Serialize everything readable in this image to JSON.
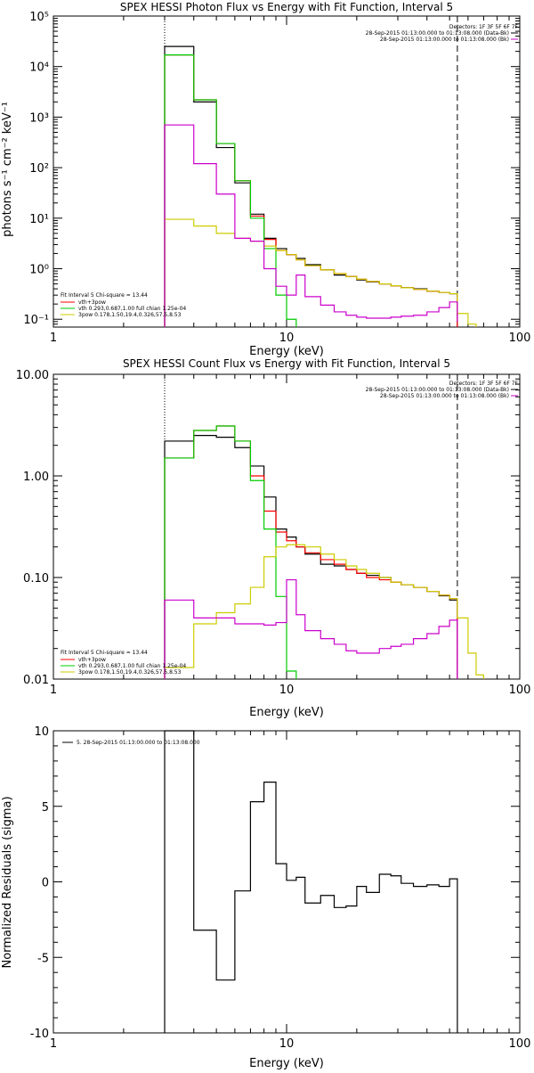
{
  "chart_data": [
    {
      "type": "line",
      "title": "SPEX HESSI Photon Flux vs Energy with Fit Function, Interval 5",
      "xlabel": "Energy (keV)",
      "ylabel": "photons s⁻¹ cm⁻² keV⁻¹",
      "xscale": "log",
      "yscale": "log",
      "xlim": [
        1,
        100
      ],
      "ylim": [
        0.07,
        100000
      ],
      "xticks": [
        {
          "v": 1,
          "label": "1"
        },
        {
          "v": 10,
          "label": "10"
        },
        {
          "v": 100,
          "label": "100"
        }
      ],
      "yticks": [
        {
          "v": 0.1,
          "label": "10⁻¹"
        },
        {
          "v": 1,
          "label": "10⁰"
        },
        {
          "v": 10,
          "label": "10¹"
        },
        {
          "v": 100,
          "label": "10²"
        },
        {
          "v": 1000,
          "label": "10³"
        },
        {
          "v": 10000,
          "label": "10⁴"
        },
        {
          "v": 100000,
          "label": "10⁵"
        }
      ],
      "vlines": [
        {
          "x": 3.0,
          "style": "dotted"
        },
        {
          "x": 54.0,
          "style": "dashed"
        }
      ],
      "header_lines": [
        {
          "text": "Detectors: 1F 3F 5F 6F 7F",
          "color": "#000000"
        },
        {
          "text": "28-Sep-2015 01:13:00.000 to 01:13:08.000 (Data-Bk)",
          "color": "#000000"
        },
        {
          "text": "28-Sep-2015 01:13:00.000 to 01:13:08.000 (Bk)",
          "color": "#cc00cc"
        }
      ],
      "legend_title": "Fit Interval 5   Chi-square = 13.44",
      "legend": [
        {
          "text": "vth+3pow",
          "color": "#ff0000"
        },
        {
          "text": "vth 0.293,0.687,1.00  full chian 1.25e-04",
          "color": "#00cc00"
        },
        {
          "text": "3pow 0.178,1.50,19.4,0.326,57.5,8.53",
          "color": "#cccc00"
        }
      ],
      "series": [
        {
          "key": "data",
          "color": "#000000",
          "edges": [
            3,
            4,
            5,
            6,
            7,
            8,
            9,
            10,
            11,
            12,
            14,
            16,
            18,
            20,
            22,
            25,
            28,
            31,
            35,
            40,
            45,
            50,
            54
          ],
          "values": [
            25000,
            2000,
            250,
            50,
            12,
            4,
            2.5,
            1.9,
            1.6,
            1.2,
            0.95,
            0.75,
            0.7,
            0.6,
            0.55,
            0.5,
            0.46,
            0.42,
            0.4,
            0.36,
            0.34,
            0.32
          ]
        },
        {
          "key": "total",
          "color": "#ff0000",
          "edges": [
            3,
            4,
            5,
            6,
            7,
            8,
            9,
            10,
            11,
            12,
            14,
            16,
            18,
            20,
            22,
            25,
            28,
            31,
            35,
            40,
            45,
            50,
            54
          ],
          "values": [
            17000,
            2200,
            300,
            55,
            11,
            3.8,
            2.3,
            1.9,
            1.5,
            1.15,
            0.95,
            0.8,
            0.7,
            0.62,
            0.56,
            0.5,
            0.46,
            0.42,
            0.39,
            0.36,
            0.34,
            0.32
          ]
        },
        {
          "key": "vth",
          "color": "#00cc00",
          "edges": [
            3,
            4,
            5,
            6,
            7,
            8,
            9,
            10,
            11
          ],
          "values": [
            17000,
            2200,
            300,
            55,
            10,
            2.5,
            0.3,
            0.1
          ]
        },
        {
          "key": "pow",
          "color": "#cccc00",
          "edges": [
            3,
            4,
            5,
            6,
            7,
            8,
            9,
            10,
            11,
            12,
            14,
            16,
            18,
            20,
            22,
            25,
            28,
            31,
            35,
            40,
            45,
            50,
            54,
            60,
            65
          ],
          "values": [
            9.5,
            7,
            5,
            4,
            3.5,
            2.8,
            2.3,
            1.9,
            1.5,
            1.15,
            0.95,
            0.8,
            0.7,
            0.62,
            0.56,
            0.5,
            0.46,
            0.42,
            0.39,
            0.36,
            0.34,
            0.32,
            0.13,
            0.08
          ]
        },
        {
          "key": "background",
          "color": "#cc00cc",
          "edges": [
            3,
            4,
            5,
            6,
            7,
            8,
            9,
            10,
            11,
            12,
            14,
            16,
            18,
            20,
            22,
            25,
            28,
            31,
            35,
            40,
            45,
            50,
            54
          ],
          "values": [
            700,
            120,
            30,
            4,
            3.5,
            1.0,
            0.45,
            0.3,
            0.75,
            0.28,
            0.19,
            0.14,
            0.12,
            0.11,
            0.105,
            0.105,
            0.11,
            0.115,
            0.12,
            0.14,
            0.17,
            0.22,
            0.09
          ]
        }
      ]
    },
    {
      "type": "line",
      "title": "SPEX HESSI Count Flux vs Energy with Fit Function, Interval 5",
      "xlabel": "Energy (keV)",
      "ylabel": "",
      "xscale": "log",
      "yscale": "log",
      "xlim": [
        1,
        100
      ],
      "ylim": [
        0.01,
        10
      ],
      "xticks": [
        {
          "v": 1,
          "label": "1"
        },
        {
          "v": 10,
          "label": "10"
        },
        {
          "v": 100,
          "label": "100"
        }
      ],
      "yticks": [
        {
          "v": 0.01,
          "label": "0.01"
        },
        {
          "v": 0.1,
          "label": "0.10"
        },
        {
          "v": 1,
          "label": "1.00"
        },
        {
          "v": 10,
          "label": "10.00"
        }
      ],
      "vlines": [
        {
          "x": 3.0,
          "style": "dotted"
        },
        {
          "x": 54.0,
          "style": "dashed"
        }
      ],
      "header_lines": [
        {
          "text": "Detectors: 1F 3F 5F 6F 7F",
          "color": "#000000"
        },
        {
          "text": "28-Sep-2015 01:13:00.000 to 01:13:08.000 (Data-Bk)",
          "color": "#000000"
        },
        {
          "text": "28-Sep-2015 01:13:00.000 to 01:13:08.000 (Bk)",
          "color": "#cc00cc"
        }
      ],
      "legend_title": "Fit Interval 5   Chi-square = 13.44",
      "legend": [
        {
          "text": "vth+3pow",
          "color": "#ff0000"
        },
        {
          "text": "vth 0.293,0.687,1.00  full chian 1.25e-04",
          "color": "#00cc00"
        },
        {
          "text": "3pow 0.178,1.50,19.4,0.326,57.5,8.53",
          "color": "#cccc00"
        }
      ],
      "series": [
        {
          "key": "data",
          "color": "#000000",
          "edges": [
            3,
            4,
            5,
            6,
            7,
            8,
            9,
            10,
            11,
            12,
            14,
            16,
            18,
            20,
            22,
            25,
            28,
            31,
            35,
            40,
            45,
            50,
            54
          ],
          "values": [
            2.2,
            2.5,
            2.4,
            1.9,
            1.25,
            0.62,
            0.3,
            0.25,
            0.2,
            0.17,
            0.135,
            0.13,
            0.12,
            0.11,
            0.105,
            0.1,
            0.09,
            0.085,
            0.08,
            0.073,
            0.066,
            0.06
          ]
        },
        {
          "key": "total",
          "color": "#ff0000",
          "edges": [
            3,
            4,
            5,
            6,
            7,
            8,
            9,
            10,
            11,
            12,
            14,
            16,
            18,
            20,
            22,
            25,
            28,
            31,
            35,
            40,
            45,
            50,
            54
          ],
          "values": [
            1.5,
            2.8,
            3.1,
            2.2,
            1.0,
            0.45,
            0.28,
            0.23,
            0.2,
            0.175,
            0.15,
            0.135,
            0.12,
            0.11,
            0.1,
            0.095,
            0.09,
            0.085,
            0.08,
            0.073,
            0.067,
            0.062
          ]
        },
        {
          "key": "vth",
          "color": "#00cc00",
          "edges": [
            3,
            4,
            5,
            6,
            7,
            8,
            9,
            10,
            11
          ],
          "values": [
            1.5,
            2.8,
            3.1,
            2.2,
            0.9,
            0.3,
            0.065,
            0.012
          ]
        },
        {
          "key": "pow",
          "color": "#cccc00",
          "edges": [
            3,
            4,
            5,
            6,
            7,
            8,
            9,
            10,
            11,
            12,
            14,
            16,
            18,
            20,
            22,
            25,
            28,
            31,
            35,
            40,
            45,
            50,
            54,
            60,
            65,
            70
          ],
          "values": [
            0.013,
            0.035,
            0.045,
            0.055,
            0.08,
            0.16,
            0.2,
            0.21,
            0.21,
            0.2,
            0.17,
            0.15,
            0.13,
            0.12,
            0.11,
            0.1,
            0.09,
            0.085,
            0.08,
            0.073,
            0.067,
            0.062,
            0.04,
            0.018,
            0.011
          ]
        },
        {
          "key": "background",
          "color": "#cc00cc",
          "edges": [
            3,
            4,
            5,
            6,
            7,
            8,
            9,
            10,
            11,
            12,
            14,
            16,
            18,
            20,
            22,
            25,
            28,
            31,
            35,
            40,
            45,
            50,
            54
          ],
          "values": [
            0.06,
            0.04,
            0.04,
            0.035,
            0.035,
            0.034,
            0.036,
            0.095,
            0.043,
            0.03,
            0.025,
            0.022,
            0.019,
            0.018,
            0.018,
            0.02,
            0.021,
            0.022,
            0.025,
            0.028,
            0.033,
            0.038,
            0.009
          ]
        }
      ]
    },
    {
      "type": "line",
      "title": "",
      "xlabel": "Energy (keV)",
      "ylabel": "Normalized Residuals (sigma)",
      "xscale": "log",
      "yscale": "linear",
      "xlim": [
        1,
        100
      ],
      "ylim": [
        -10,
        10
      ],
      "xticks": [
        {
          "v": 1,
          "label": "1"
        },
        {
          "v": 10,
          "label": "10"
        },
        {
          "v": 100,
          "label": "100"
        }
      ],
      "yticks": [
        {
          "v": -10,
          "label": "-10"
        },
        {
          "v": -5,
          "label": "-5"
        },
        {
          "v": 0,
          "label": "0"
        },
        {
          "v": 5,
          "label": "5"
        },
        {
          "v": 10,
          "label": "10"
        }
      ],
      "legend": [
        {
          "text": "5. 28-Sep-2015 01:13:00.000 to 01:13:08.000",
          "color": "#000000"
        }
      ],
      "series": [
        {
          "key": "residuals",
          "color": "#000000",
          "edges": [
            3,
            4,
            5,
            6,
            7,
            8,
            9,
            10,
            11,
            12,
            14,
            16,
            18,
            20,
            22,
            25,
            28,
            31,
            35,
            40,
            45,
            50,
            54
          ],
          "values": [
            10,
            -3.2,
            -6.5,
            -0.6,
            5.3,
            6.6,
            1.2,
            0.1,
            0.3,
            -1.4,
            -0.9,
            -1.7,
            -1.6,
            -0.3,
            -0.7,
            0.5,
            0.4,
            -0.1,
            -0.3,
            -0.2,
            -0.3,
            0.2
          ]
        }
      ]
    }
  ]
}
